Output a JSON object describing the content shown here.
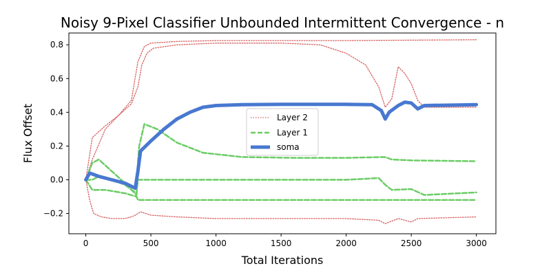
{
  "chart_data": {
    "type": "line",
    "title": "Noisy 9-Pixel Classifier Unbounded Intermittent Convergence - n",
    "xlabel": "Total Iterations",
    "ylabel": "Flux Offset",
    "xlim": [
      -130,
      3150
    ],
    "ylim": [
      -0.32,
      0.87
    ],
    "xticks": [
      0,
      500,
      1000,
      1500,
      2000,
      2500,
      3000
    ],
    "xtick_labels": [
      "0",
      "500",
      "1000",
      "1500",
      "2000",
      "2500",
      "3000"
    ],
    "yticks": [
      -0.2,
      0.0,
      0.2,
      0.4,
      0.6,
      0.8
    ],
    "ytick_labels": [
      "−0.2",
      "0.0",
      "0.2",
      "0.4",
      "0.6",
      "0.8"
    ],
    "grid": false,
    "legend_position": "center",
    "legend": [
      {
        "label": "Layer 2",
        "style": "dotted",
        "color": "#d65f5f"
      },
      {
        "label": "Layer 1",
        "style": "dashed",
        "color": "#6acc64"
      },
      {
        "label": "soma",
        "style": "solid",
        "color": "#4878d0"
      }
    ],
    "colors": {
      "layer2": "#d65f5f",
      "layer1": "#6acc64",
      "soma": "#4878d0"
    },
    "series": [
      {
        "name": "Layer 2",
        "line": "dotted",
        "x": [
          0,
          50,
          150,
          250,
          350,
          400,
          450,
          500,
          700,
          1000,
          2000,
          3000
        ],
        "y": [
          0.0,
          0.25,
          0.32,
          0.38,
          0.47,
          0.7,
          0.79,
          0.81,
          0.82,
          0.825,
          0.825,
          0.83
        ]
      },
      {
        "name": "Layer 2",
        "line": "dotted",
        "x": [
          0,
          50,
          150,
          250,
          350,
          400,
          430,
          470,
          520,
          700,
          1000,
          1500,
          1800,
          2000,
          2150,
          2250,
          2300,
          2350,
          2400,
          2450,
          2500,
          2550,
          2600,
          3000
        ],
        "y": [
          0.0,
          0.12,
          0.3,
          0.38,
          0.45,
          0.55,
          0.68,
          0.75,
          0.78,
          0.8,
          0.81,
          0.81,
          0.8,
          0.75,
          0.68,
          0.55,
          0.43,
          0.48,
          0.67,
          0.63,
          0.57,
          0.47,
          0.43,
          0.43
        ]
      },
      {
        "name": "Layer 2",
        "line": "dotted",
        "x": [
          0,
          30,
          60,
          120,
          200,
          300,
          350,
          380,
          420,
          500,
          700,
          1000,
          2000,
          2250,
          2300,
          2400,
          2500,
          2550,
          3000
        ],
        "y": [
          0.0,
          -0.12,
          -0.2,
          -0.22,
          -0.23,
          -0.23,
          -0.22,
          -0.21,
          -0.19,
          -0.21,
          -0.22,
          -0.23,
          -0.23,
          -0.24,
          -0.26,
          -0.23,
          -0.25,
          -0.23,
          -0.22
        ]
      },
      {
        "name": "Layer 1",
        "line": "dashed",
        "x": [
          0,
          50,
          100,
          200,
          300,
          390,
          400,
          410,
          450,
          550,
          700,
          900,
          1200,
          1600,
          2000,
          2300,
          2350,
          2500,
          3000
        ],
        "y": [
          0.0,
          0.1,
          0.12,
          0.05,
          -0.02,
          -0.09,
          0.1,
          0.2,
          0.33,
          0.3,
          0.22,
          0.16,
          0.135,
          0.13,
          0.13,
          0.135,
          0.12,
          0.115,
          0.11
        ]
      },
      {
        "name": "Layer 1",
        "line": "dashed",
        "x": [
          0,
          50,
          100,
          200,
          300,
          390,
          400,
          1000,
          2000,
          2250,
          2300,
          2350,
          2500,
          2600,
          3000
        ],
        "y": [
          0.0,
          0.0,
          0.02,
          0.0,
          -0.03,
          -0.08,
          0.0,
          0.0,
          0.0,
          0.01,
          -0.03,
          -0.06,
          -0.055,
          -0.09,
          -0.075
        ]
      },
      {
        "name": "Layer 1",
        "line": "dashed",
        "x": [
          0,
          50,
          150,
          300,
          390,
          400,
          3000
        ],
        "y": [
          0.0,
          -0.06,
          -0.06,
          -0.08,
          -0.1,
          -0.12,
          -0.12
        ]
      },
      {
        "name": "soma",
        "line": "solid",
        "x": [
          0,
          30,
          100,
          200,
          300,
          380,
          400,
          420,
          500,
          600,
          700,
          800,
          900,
          1000,
          1200,
          1500,
          1800,
          2000,
          2200,
          2270,
          2300,
          2330,
          2400,
          2450,
          2500,
          2550,
          2600,
          3000
        ],
        "y": [
          0.0,
          0.04,
          0.02,
          0.0,
          -0.02,
          -0.05,
          0.05,
          0.17,
          0.23,
          0.3,
          0.36,
          0.4,
          0.43,
          0.44,
          0.445,
          0.447,
          0.447,
          0.447,
          0.445,
          0.41,
          0.36,
          0.4,
          0.44,
          0.46,
          0.455,
          0.42,
          0.44,
          0.445
        ]
      }
    ]
  }
}
